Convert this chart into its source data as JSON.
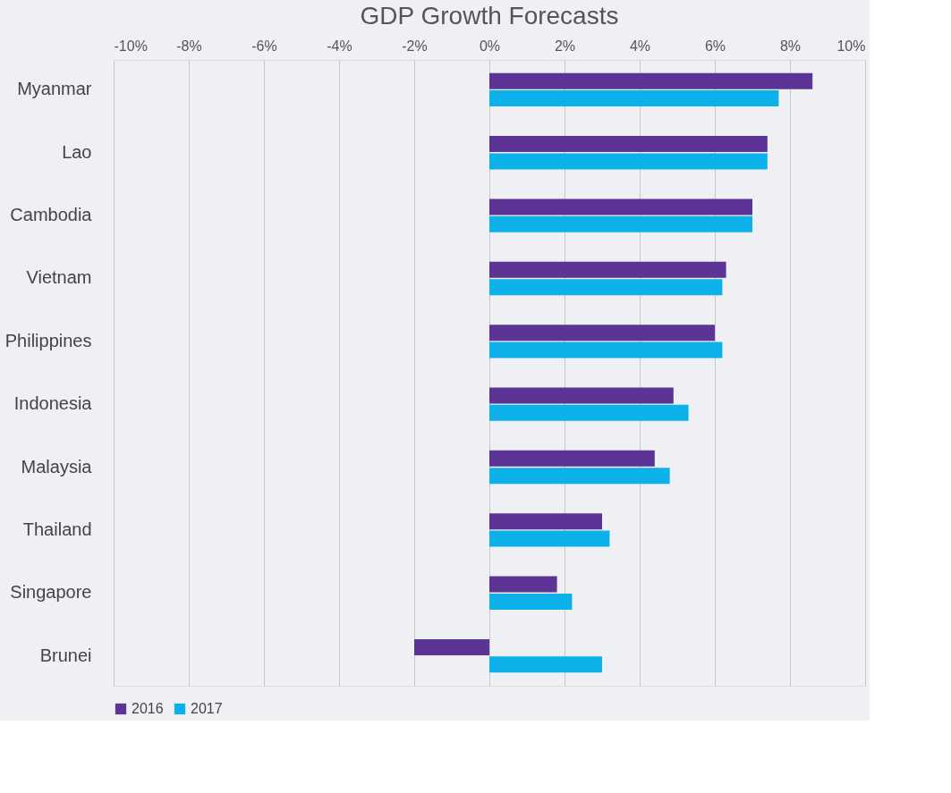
{
  "chart_data": {
    "type": "bar",
    "orientation": "horizontal",
    "title": "GDP Growth Forecasts",
    "categories": [
      "Myanmar",
      "Lao",
      "Cambodia",
      "Vietnam",
      "Philippines",
      "Indonesia",
      "Malaysia",
      "Thailand",
      "Singapore",
      "Brunei"
    ],
    "series": [
      {
        "name": "2016",
        "color": "#5b3495",
        "values": [
          8.6,
          7.4,
          7.0,
          6.3,
          6.0,
          4.9,
          4.4,
          3.0,
          1.8,
          -2.0
        ]
      },
      {
        "name": "2017",
        "color": "#0db1ea",
        "values": [
          7.7,
          7.4,
          7.0,
          6.2,
          6.2,
          5.3,
          4.8,
          3.2,
          2.2,
          3.0
        ]
      }
    ],
    "xlim": [
      -10,
      10
    ],
    "xticks": [
      {
        "value": -10,
        "label": "-10%"
      },
      {
        "value": -8,
        "label": "-8%"
      },
      {
        "value": -6,
        "label": "-6%"
      },
      {
        "value": -4,
        "label": "-4%"
      },
      {
        "value": -2,
        "label": "-2%"
      },
      {
        "value": 0,
        "label": "0%"
      },
      {
        "value": 2,
        "label": "2%"
      },
      {
        "value": 4,
        "label": "4%"
      },
      {
        "value": 6,
        "label": "6%"
      },
      {
        "value": 8,
        "label": "8%"
      },
      {
        "value": 10,
        "label": "10%"
      }
    ],
    "grid": "x",
    "legend": "bottom"
  }
}
